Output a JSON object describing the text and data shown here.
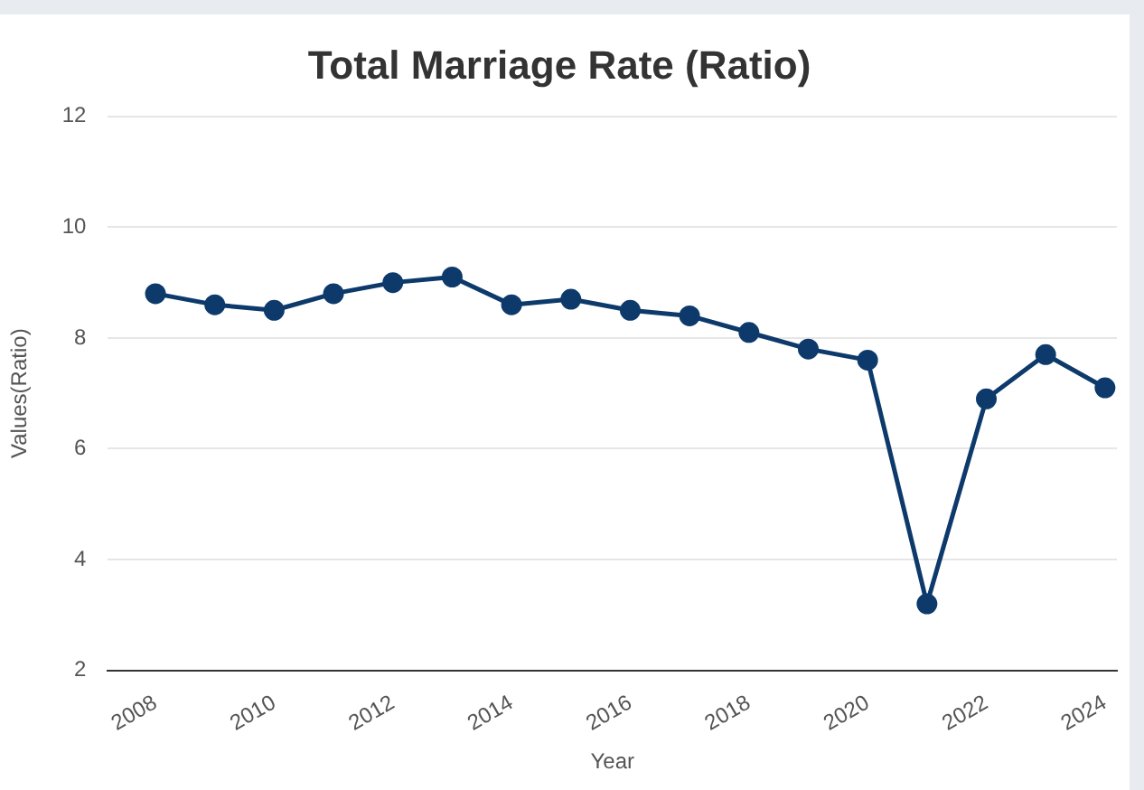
{
  "chart_data": {
    "type": "line",
    "title": "Total Marriage Rate (Ratio)",
    "xlabel": "Year",
    "ylabel": "Values(Ratio)",
    "x": [
      2008,
      2009,
      2010,
      2011,
      2012,
      2013,
      2014,
      2015,
      2016,
      2017,
      2018,
      2019,
      2020,
      2021,
      2022,
      2023,
      2024
    ],
    "series": [
      {
        "color": "#0d3a6b",
        "values": [
          8.8,
          8.6,
          8.5,
          8.8,
          9.0,
          9.1,
          8.6,
          8.7,
          8.5,
          8.4,
          8.1,
          7.8,
          7.6,
          3.2,
          6.9,
          7.7,
          7.1
        ]
      }
    ],
    "xlim": [
      2007.2,
      2024.2
    ],
    "xticks": [
      2008,
      2010,
      2012,
      2014,
      2016,
      2018,
      2020,
      2022,
      2024
    ],
    "ylim": [
      2,
      12
    ],
    "yticks": [
      2,
      4,
      6,
      8,
      10,
      12
    ],
    "grid": "y",
    "marker": "circle",
    "line_style": "solid",
    "legend": false
  }
}
